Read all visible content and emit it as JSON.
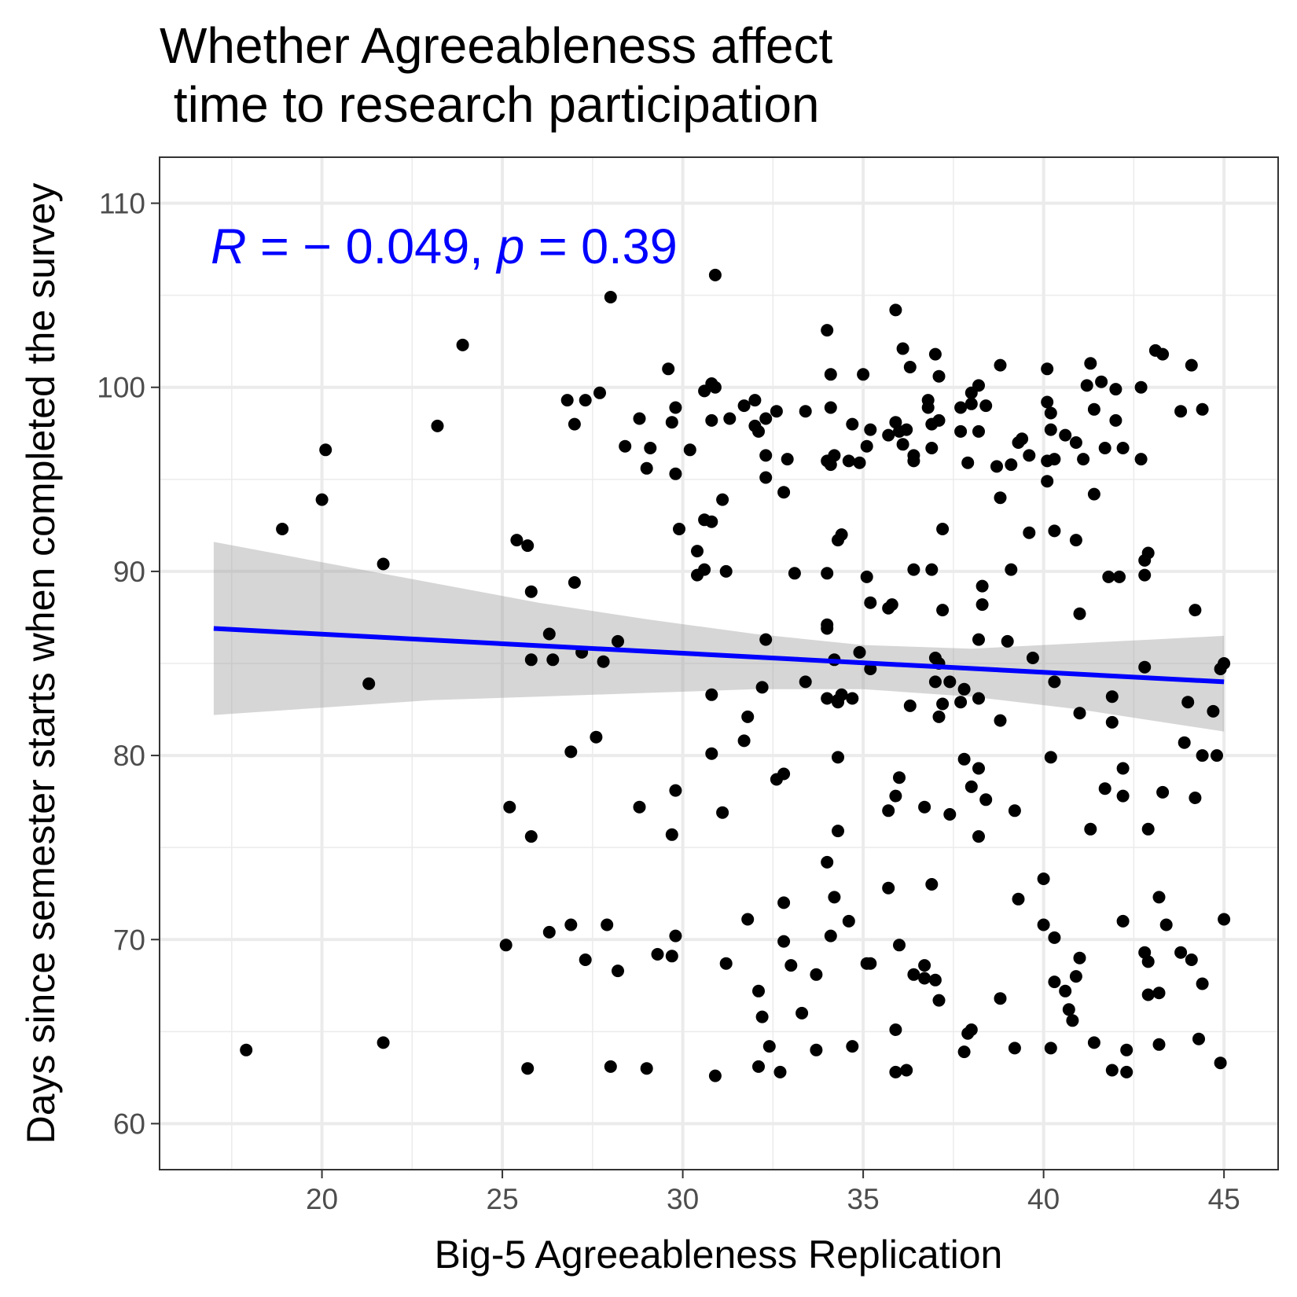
{
  "chart_data": {
    "type": "scatter",
    "title_lines": [
      "Whether Agreeableness affect",
      " time to research participation"
    ],
    "xlabel": "Big-5 Agreeableness Replication",
    "ylabel": "Days since semester starts when completed the survey",
    "xlim": [
      15.5,
      46.5
    ],
    "ylim": [
      57.5,
      112.5
    ],
    "x_ticks": [
      20,
      25,
      30,
      35,
      40,
      45
    ],
    "y_ticks": [
      60,
      70,
      80,
      90,
      100,
      110
    ],
    "grid": true,
    "annotation": {
      "r_symbol": "R",
      "r_text": " = − 0.049, ",
      "p_symbol": "p",
      "p_text": " = 0.39"
    },
    "colors": {
      "points": "#000000",
      "regression_line": "#0000ff",
      "confidence_band": "#999999",
      "annotation": "#0000ff"
    },
    "regression": {
      "x_start": 17.0,
      "y_start": 86.9,
      "x_end": 45.0,
      "y_end": 84.0
    },
    "confidence_band": {
      "x": [
        17,
        20,
        23,
        26,
        29,
        32,
        35,
        38,
        41,
        43,
        45
      ],
      "upper": [
        91.6,
        90.5,
        89.4,
        88.3,
        87.4,
        86.6,
        86.0,
        85.8,
        86.1,
        86.3,
        86.5
      ],
      "lower": [
        82.2,
        82.6,
        83.0,
        83.2,
        83.4,
        83.6,
        83.6,
        83.2,
        82.5,
        81.9,
        81.3
      ]
    },
    "points": [
      [
        17.9,
        64.0
      ],
      [
        18.9,
        92.3
      ],
      [
        20.0,
        93.9
      ],
      [
        20.1,
        96.6
      ],
      [
        21.3,
        83.9
      ],
      [
        21.7,
        90.4
      ],
      [
        21.7,
        64.4
      ],
      [
        23.2,
        97.9
      ],
      [
        23.9,
        102.3
      ],
      [
        25.1,
        69.7
      ],
      [
        25.2,
        77.2
      ],
      [
        25.4,
        91.7
      ],
      [
        25.7,
        91.4
      ],
      [
        25.7,
        63.0
      ],
      [
        25.8,
        88.9
      ],
      [
        25.8,
        85.2
      ],
      [
        25.8,
        75.6
      ],
      [
        26.3,
        86.6
      ],
      [
        26.4,
        85.2
      ],
      [
        26.3,
        70.4
      ],
      [
        26.8,
        99.3
      ],
      [
        26.9,
        70.8
      ],
      [
        26.9,
        80.2
      ],
      [
        27.0,
        89.4
      ],
      [
        27.0,
        98.0
      ],
      [
        27.2,
        85.6
      ],
      [
        27.3,
        99.3
      ],
      [
        27.3,
        68.9
      ],
      [
        27.6,
        81.0
      ],
      [
        27.7,
        99.7
      ],
      [
        27.8,
        85.1
      ],
      [
        27.9,
        70.8
      ],
      [
        28.0,
        104.9
      ],
      [
        28.0,
        63.1
      ],
      [
        28.2,
        86.2
      ],
      [
        28.2,
        68.3
      ],
      [
        28.4,
        96.8
      ],
      [
        28.8,
        98.3
      ],
      [
        28.8,
        77.2
      ],
      [
        29.0,
        95.6
      ],
      [
        29.0,
        63.0
      ],
      [
        29.1,
        96.7
      ],
      [
        29.3,
        69.2
      ],
      [
        29.6,
        101.0
      ],
      [
        29.7,
        98.1
      ],
      [
        29.7,
        75.7
      ],
      [
        29.7,
        69.1
      ],
      [
        29.8,
        98.9
      ],
      [
        29.8,
        95.3
      ],
      [
        29.8,
        78.1
      ],
      [
        29.8,
        70.2
      ],
      [
        29.9,
        92.3
      ],
      [
        30.2,
        96.6
      ],
      [
        30.4,
        91.1
      ],
      [
        30.4,
        89.8
      ],
      [
        30.6,
        99.8
      ],
      [
        30.6,
        92.8
      ],
      [
        30.6,
        90.1
      ],
      [
        30.8,
        100.2
      ],
      [
        30.8,
        98.2
      ],
      [
        30.8,
        92.7
      ],
      [
        30.8,
        83.3
      ],
      [
        30.8,
        80.1
      ],
      [
        30.9,
        62.6
      ],
      [
        30.9,
        100.0
      ],
      [
        30.9,
        106.1
      ],
      [
        31.1,
        93.9
      ],
      [
        31.1,
        76.9
      ],
      [
        31.2,
        90.0
      ],
      [
        31.2,
        68.7
      ],
      [
        31.3,
        98.3
      ],
      [
        31.7,
        80.8
      ],
      [
        31.7,
        99.0
      ],
      [
        31.8,
        82.1
      ],
      [
        31.8,
        71.1
      ],
      [
        32.0,
        99.3
      ],
      [
        32.0,
        97.9
      ],
      [
        32.1,
        97.6
      ],
      [
        32.1,
        67.2
      ],
      [
        32.1,
        63.1
      ],
      [
        32.2,
        65.8
      ],
      [
        32.3,
        98.3
      ],
      [
        32.3,
        96.3
      ],
      [
        32.3,
        95.1
      ],
      [
        32.3,
        86.3
      ],
      [
        32.2,
        83.7
      ],
      [
        32.4,
        64.2
      ],
      [
        32.6,
        98.7
      ],
      [
        32.6,
        78.7
      ],
      [
        32.7,
        62.8
      ],
      [
        32.8,
        69.9
      ],
      [
        32.8,
        79.0
      ],
      [
        32.8,
        94.3
      ],
      [
        32.8,
        72.0
      ],
      [
        32.9,
        96.1
      ],
      [
        33.0,
        68.6
      ],
      [
        33.1,
        89.9
      ],
      [
        33.3,
        66.0
      ],
      [
        33.4,
        98.7
      ],
      [
        33.4,
        84.0
      ],
      [
        33.7,
        64.0
      ],
      [
        33.7,
        68.1
      ],
      [
        34.0,
        103.1
      ],
      [
        34.0,
        96.0
      ],
      [
        34.0,
        89.9
      ],
      [
        34.0,
        87.1
      ],
      [
        34.0,
        86.9
      ],
      [
        34.0,
        83.1
      ],
      [
        34.0,
        74.2
      ],
      [
        34.1,
        100.7
      ],
      [
        34.1,
        98.9
      ],
      [
        34.1,
        95.8
      ],
      [
        34.1,
        70.2
      ],
      [
        34.2,
        96.3
      ],
      [
        34.2,
        85.2
      ],
      [
        34.2,
        72.3
      ],
      [
        34.3,
        91.7
      ],
      [
        34.3,
        83.0
      ],
      [
        34.3,
        82.9
      ],
      [
        34.3,
        75.9
      ],
      [
        34.3,
        79.9
      ],
      [
        34.4,
        92.0
      ],
      [
        34.4,
        83.3
      ],
      [
        34.6,
        96.0
      ],
      [
        34.6,
        71.0
      ],
      [
        34.7,
        98.0
      ],
      [
        34.7,
        83.1
      ],
      [
        34.7,
        64.2
      ],
      [
        34.9,
        95.9
      ],
      [
        34.9,
        85.6
      ],
      [
        35.0,
        100.7
      ],
      [
        35.1,
        96.8
      ],
      [
        35.1,
        89.7
      ],
      [
        35.1,
        68.7
      ],
      [
        35.2,
        97.7
      ],
      [
        35.2,
        88.3
      ],
      [
        35.2,
        84.7
      ],
      [
        35.2,
        68.7
      ],
      [
        35.7,
        97.4
      ],
      [
        35.7,
        88.0
      ],
      [
        35.7,
        77.0
      ],
      [
        35.7,
        72.8
      ],
      [
        35.8,
        88.2
      ],
      [
        35.9,
        98.1
      ],
      [
        35.9,
        77.8
      ],
      [
        35.9,
        65.1
      ],
      [
        35.9,
        62.8
      ],
      [
        35.9,
        104.2
      ],
      [
        36.0,
        97.6
      ],
      [
        36.0,
        78.8
      ],
      [
        36.0,
        69.7
      ],
      [
        36.1,
        102.1
      ],
      [
        36.1,
        96.9
      ],
      [
        36.2,
        97.7
      ],
      [
        36.2,
        62.9
      ],
      [
        36.3,
        101.1
      ],
      [
        36.3,
        82.7
      ],
      [
        36.4,
        96.0
      ],
      [
        36.4,
        96.3
      ],
      [
        36.4,
        90.1
      ],
      [
        36.4,
        68.1
      ],
      [
        36.7,
        68.6
      ],
      [
        36.7,
        67.9
      ],
      [
        36.7,
        77.2
      ],
      [
        36.8,
        99.3
      ],
      [
        36.8,
        98.9
      ],
      [
        36.9,
        98.0
      ],
      [
        36.9,
        96.7
      ],
      [
        36.9,
        90.1
      ],
      [
        36.9,
        73.0
      ],
      [
        37.0,
        101.8
      ],
      [
        37.0,
        85.3
      ],
      [
        37.0,
        84.0
      ],
      [
        37.0,
        67.8
      ],
      [
        37.1,
        100.6
      ],
      [
        37.1,
        98.2
      ],
      [
        37.1,
        85.0
      ],
      [
        37.1,
        82.1
      ],
      [
        37.1,
        66.7
      ],
      [
        37.2,
        92.3
      ],
      [
        37.2,
        87.9
      ],
      [
        37.2,
        82.8
      ],
      [
        37.4,
        84.0
      ],
      [
        37.4,
        76.8
      ],
      [
        37.7,
        98.9
      ],
      [
        37.7,
        97.6
      ],
      [
        37.7,
        82.9
      ],
      [
        37.8,
        83.6
      ],
      [
        37.8,
        79.8
      ],
      [
        37.8,
        63.9
      ],
      [
        37.9,
        95.9
      ],
      [
        37.9,
        64.9
      ],
      [
        38.0,
        99.7
      ],
      [
        38.0,
        99.1
      ],
      [
        38.0,
        78.3
      ],
      [
        38.0,
        65.1
      ],
      [
        38.2,
        100.1
      ],
      [
        38.2,
        97.6
      ],
      [
        38.2,
        86.3
      ],
      [
        38.2,
        83.1
      ],
      [
        38.2,
        79.3
      ],
      [
        38.2,
        75.6
      ],
      [
        38.3,
        89.2
      ],
      [
        38.3,
        88.2
      ],
      [
        38.4,
        99.0
      ],
      [
        38.4,
        77.6
      ],
      [
        38.7,
        95.7
      ],
      [
        38.8,
        101.2
      ],
      [
        38.8,
        94.0
      ],
      [
        38.8,
        81.9
      ],
      [
        38.8,
        66.8
      ],
      [
        39.0,
        86.2
      ],
      [
        39.1,
        95.8
      ],
      [
        39.1,
        90.1
      ],
      [
        39.2,
        77.0
      ],
      [
        39.2,
        64.1
      ],
      [
        39.3,
        72.2
      ],
      [
        39.3,
        97.0
      ],
      [
        39.4,
        97.2
      ],
      [
        39.6,
        96.3
      ],
      [
        39.6,
        92.1
      ],
      [
        39.7,
        85.3
      ],
      [
        40.0,
        73.3
      ],
      [
        40.0,
        70.8
      ],
      [
        40.1,
        101.0
      ],
      [
        40.1,
        99.2
      ],
      [
        40.1,
        96.0
      ],
      [
        40.1,
        94.9
      ],
      [
        40.2,
        79.9
      ],
      [
        40.2,
        98.6
      ],
      [
        40.2,
        97.7
      ],
      [
        40.2,
        64.1
      ],
      [
        40.3,
        96.1
      ],
      [
        40.3,
        92.2
      ],
      [
        40.3,
        84.0
      ],
      [
        40.3,
        70.1
      ],
      [
        40.3,
        67.7
      ],
      [
        40.6,
        97.4
      ],
      [
        40.6,
        67.2
      ],
      [
        40.7,
        66.2
      ],
      [
        40.8,
        65.6
      ],
      [
        40.9,
        97.0
      ],
      [
        40.9,
        91.7
      ],
      [
        40.9,
        68.0
      ],
      [
        41.0,
        87.7
      ],
      [
        41.0,
        82.3
      ],
      [
        41.0,
        69.0
      ],
      [
        41.1,
        96.1
      ],
      [
        41.2,
        100.1
      ],
      [
        41.3,
        101.3
      ],
      [
        41.3,
        76.0
      ],
      [
        41.4,
        98.8
      ],
      [
        41.4,
        94.2
      ],
      [
        41.4,
        64.4
      ],
      [
        41.6,
        100.3
      ],
      [
        41.7,
        96.7
      ],
      [
        41.7,
        78.2
      ],
      [
        41.8,
        89.7
      ],
      [
        41.9,
        81.8
      ],
      [
        41.9,
        83.2
      ],
      [
        41.9,
        62.9
      ],
      [
        42.0,
        99.9
      ],
      [
        42.0,
        98.2
      ],
      [
        42.1,
        89.7
      ],
      [
        42.2,
        96.7
      ],
      [
        42.2,
        79.3
      ],
      [
        42.2,
        77.8
      ],
      [
        42.2,
        71.0
      ],
      [
        42.3,
        64.0
      ],
      [
        42.3,
        62.8
      ],
      [
        42.7,
        100.0
      ],
      [
        42.7,
        96.1
      ],
      [
        42.8,
        89.8
      ],
      [
        42.8,
        90.6
      ],
      [
        42.8,
        84.8
      ],
      [
        42.8,
        69.3
      ],
      [
        42.9,
        91.0
      ],
      [
        42.9,
        76.0
      ],
      [
        42.9,
        68.8
      ],
      [
        42.9,
        67.0
      ],
      [
        43.1,
        102.0
      ],
      [
        43.2,
        72.3
      ],
      [
        43.2,
        67.1
      ],
      [
        43.2,
        64.3
      ],
      [
        43.3,
        101.8
      ],
      [
        43.3,
        78.0
      ],
      [
        43.4,
        70.8
      ],
      [
        43.8,
        98.7
      ],
      [
        43.8,
        69.3
      ],
      [
        43.9,
        80.7
      ],
      [
        44.0,
        82.9
      ],
      [
        44.1,
        101.2
      ],
      [
        44.1,
        68.9
      ],
      [
        44.2,
        87.9
      ],
      [
        44.2,
        77.7
      ],
      [
        44.3,
        64.6
      ],
      [
        44.4,
        98.8
      ],
      [
        44.4,
        80.0
      ],
      [
        44.4,
        67.6
      ],
      [
        44.7,
        82.4
      ],
      [
        44.8,
        80.0
      ],
      [
        44.9,
        84.7
      ],
      [
        44.9,
        63.3
      ],
      [
        45.0,
        85.0
      ],
      [
        45.0,
        71.1
      ]
    ]
  }
}
